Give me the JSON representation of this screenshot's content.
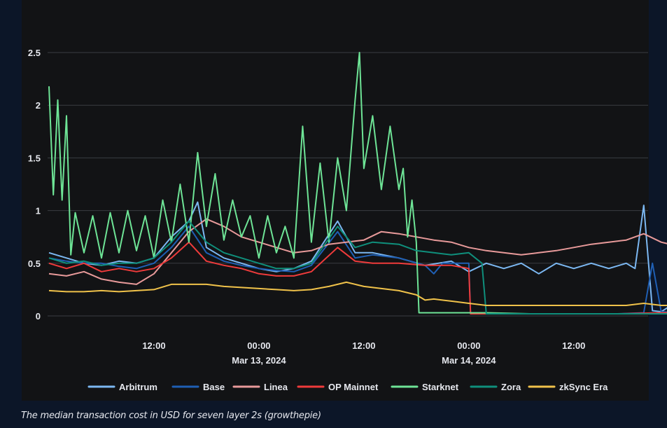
{
  "caption": "The median transaction cost in USD for seven layer 2s (growthepie)",
  "chart_data": {
    "type": "line",
    "title": "",
    "xlabel": "",
    "ylabel": "",
    "x_range": [
      "2024-03-12T00:00",
      "2024-03-14T20:30"
    ],
    "ylim": [
      0,
      2.6
    ],
    "y_ticks": [
      "0",
      "0.5",
      "1",
      "1.5",
      "2",
      "2.5"
    ],
    "x_ticks": [
      {
        "at": "2024-03-12T12:00",
        "lines": [
          "12:00"
        ]
      },
      {
        "at": "2024-03-13T00:00",
        "lines": [
          "00:00",
          "Mar 13, 2024"
        ]
      },
      {
        "at": "2024-03-13T12:00",
        "lines": [
          "12:00"
        ]
      },
      {
        "at": "2024-03-14T00:00",
        "lines": [
          "00:00",
          "Mar 14, 2024"
        ]
      },
      {
        "at": "2024-03-14T12:00",
        "lines": [
          "12:00"
        ]
      }
    ],
    "grid": "horizontal",
    "legend_position": "bottom",
    "series": [
      {
        "name": "Arbitrum",
        "color": "#7cb8f2",
        "points": [
          [
            0,
            0.6
          ],
          [
            2,
            0.55
          ],
          [
            4,
            0.5
          ],
          [
            6,
            0.48
          ],
          [
            8,
            0.52
          ],
          [
            10,
            0.5
          ],
          [
            12,
            0.55
          ],
          [
            14,
            0.75
          ],
          [
            16,
            0.9
          ],
          [
            17,
            1.08
          ],
          [
            18,
            0.65
          ],
          [
            20,
            0.55
          ],
          [
            22,
            0.5
          ],
          [
            24,
            0.45
          ],
          [
            26,
            0.42
          ],
          [
            28,
            0.45
          ],
          [
            30,
            0.52
          ],
          [
            33,
            0.9
          ],
          [
            35,
            0.6
          ],
          [
            37,
            0.6
          ],
          [
            40,
            0.55
          ],
          [
            43,
            0.48
          ],
          [
            46,
            0.52
          ],
          [
            48,
            0.42
          ],
          [
            50,
            0.5
          ],
          [
            52,
            0.45
          ],
          [
            54,
            0.5
          ],
          [
            56,
            0.4
          ],
          [
            58,
            0.5
          ],
          [
            60,
            0.45
          ],
          [
            62,
            0.5
          ],
          [
            64,
            0.45
          ],
          [
            66,
            0.5
          ],
          [
            67,
            0.45
          ],
          [
            68,
            1.05
          ],
          [
            69,
            0.05
          ],
          [
            70,
            0.04
          ],
          [
            71.5,
            0.12
          ],
          [
            72,
            0.04
          ]
        ]
      },
      {
        "name": "Base",
        "color": "#1f5fb4",
        "points": [
          [
            0,
            0.55
          ],
          [
            2,
            0.52
          ],
          [
            4,
            0.5
          ],
          [
            6,
            0.5
          ],
          [
            8,
            0.47
          ],
          [
            10,
            0.45
          ],
          [
            12,
            0.5
          ],
          [
            14,
            0.65
          ],
          [
            16,
            0.85
          ],
          [
            18,
            0.6
          ],
          [
            20,
            0.52
          ],
          [
            22,
            0.48
          ],
          [
            24,
            0.45
          ],
          [
            26,
            0.43
          ],
          [
            28,
            0.42
          ],
          [
            30,
            0.48
          ],
          [
            33,
            0.8
          ],
          [
            35,
            0.55
          ],
          [
            37,
            0.58
          ],
          [
            40,
            0.55
          ],
          [
            43,
            0.48
          ],
          [
            44,
            0.4
          ],
          [
            45,
            0.5
          ],
          [
            48,
            0.5
          ],
          [
            48.2,
            0.02
          ],
          [
            54,
            0.02
          ],
          [
            60,
            0.02
          ],
          [
            65,
            0.02
          ],
          [
            68,
            0.03
          ],
          [
            69,
            0.5
          ],
          [
            70,
            0.04
          ],
          [
            72,
            0.03
          ]
        ]
      },
      {
        "name": "Linea",
        "color": "#e89a9a",
        "points": [
          [
            0,
            0.4
          ],
          [
            2,
            0.38
          ],
          [
            4,
            0.42
          ],
          [
            6,
            0.35
          ],
          [
            8,
            0.32
          ],
          [
            10,
            0.3
          ],
          [
            12,
            0.4
          ],
          [
            14,
            0.6
          ],
          [
            16,
            0.8
          ],
          [
            18,
            0.92
          ],
          [
            20,
            0.85
          ],
          [
            22,
            0.75
          ],
          [
            24,
            0.7
          ],
          [
            26,
            0.65
          ],
          [
            28,
            0.6
          ],
          [
            30,
            0.62
          ],
          [
            32,
            0.68
          ],
          [
            34,
            0.7
          ],
          [
            36,
            0.72
          ],
          [
            38,
            0.8
          ],
          [
            40,
            0.78
          ],
          [
            42,
            0.75
          ],
          [
            44,
            0.72
          ],
          [
            46,
            0.7
          ],
          [
            48,
            0.65
          ],
          [
            50,
            0.62
          ],
          [
            52,
            0.6
          ],
          [
            54,
            0.58
          ],
          [
            56,
            0.6
          ],
          [
            58,
            0.62
          ],
          [
            60,
            0.65
          ],
          [
            62,
            0.68
          ],
          [
            64,
            0.7
          ],
          [
            66,
            0.72
          ],
          [
            68,
            0.78
          ],
          [
            70,
            0.7
          ],
          [
            71,
            0.68
          ],
          [
            72,
            0.78
          ]
        ]
      },
      {
        "name": "OP Mainnet",
        "color": "#ef3b3b",
        "points": [
          [
            0,
            0.5
          ],
          [
            2,
            0.45
          ],
          [
            4,
            0.5
          ],
          [
            6,
            0.42
          ],
          [
            8,
            0.45
          ],
          [
            10,
            0.42
          ],
          [
            12,
            0.45
          ],
          [
            14,
            0.55
          ],
          [
            16,
            0.7
          ],
          [
            18,
            0.52
          ],
          [
            20,
            0.48
          ],
          [
            22,
            0.45
          ],
          [
            24,
            0.4
          ],
          [
            26,
            0.38
          ],
          [
            28,
            0.38
          ],
          [
            30,
            0.42
          ],
          [
            33,
            0.65
          ],
          [
            35,
            0.52
          ],
          [
            37,
            0.5
          ],
          [
            40,
            0.5
          ],
          [
            43,
            0.48
          ],
          [
            46,
            0.48
          ],
          [
            48,
            0.45
          ],
          [
            48.2,
            0.02
          ],
          [
            54,
            0.02
          ],
          [
            60,
            0.02
          ],
          [
            65,
            0.02
          ],
          [
            70,
            0.03
          ],
          [
            72,
            0.03
          ]
        ]
      },
      {
        "name": "Starknet",
        "color": "#6ee496",
        "points": [
          [
            0,
            2.18
          ],
          [
            0.5,
            1.15
          ],
          [
            1,
            2.05
          ],
          [
            1.5,
            1.1
          ],
          [
            2,
            1.9
          ],
          [
            2.5,
            0.58
          ],
          [
            3,
            0.98
          ],
          [
            4,
            0.6
          ],
          [
            5,
            0.95
          ],
          [
            6,
            0.55
          ],
          [
            7,
            0.98
          ],
          [
            8,
            0.6
          ],
          [
            9,
            1.0
          ],
          [
            10,
            0.62
          ],
          [
            11,
            0.95
          ],
          [
            12,
            0.55
          ],
          [
            13,
            1.1
          ],
          [
            14,
            0.7
          ],
          [
            15,
            1.25
          ],
          [
            16,
            0.7
          ],
          [
            17,
            1.55
          ],
          [
            18,
            0.85
          ],
          [
            19,
            1.35
          ],
          [
            20,
            0.72
          ],
          [
            21,
            1.1
          ],
          [
            22,
            0.75
          ],
          [
            23,
            0.95
          ],
          [
            24,
            0.55
          ],
          [
            25,
            0.95
          ],
          [
            26,
            0.6
          ],
          [
            27,
            0.85
          ],
          [
            28,
            0.55
          ],
          [
            29,
            1.8
          ],
          [
            30,
            0.7
          ],
          [
            31,
            1.45
          ],
          [
            32,
            0.7
          ],
          [
            33,
            1.5
          ],
          [
            34,
            1.0
          ],
          [
            35,
            2.05
          ],
          [
            35.5,
            2.5
          ],
          [
            36,
            1.4
          ],
          [
            37,
            1.9
          ],
          [
            38,
            1.2
          ],
          [
            39,
            1.8
          ],
          [
            40,
            1.2
          ],
          [
            40.5,
            1.4
          ],
          [
            41,
            0.75
          ],
          [
            41.5,
            1.1
          ],
          [
            42,
            0.7
          ],
          [
            42.3,
            0.03
          ],
          [
            46,
            0.03
          ],
          [
            50,
            0.03
          ],
          [
            55,
            0.02
          ],
          [
            60,
            0.02
          ],
          [
            66,
            0.02
          ],
          [
            72,
            0.02
          ]
        ]
      },
      {
        "name": "Zora",
        "color": "#0f8f7c",
        "points": [
          [
            0,
            0.55
          ],
          [
            2,
            0.5
          ],
          [
            4,
            0.52
          ],
          [
            6,
            0.48
          ],
          [
            8,
            0.5
          ],
          [
            10,
            0.5
          ],
          [
            12,
            0.55
          ],
          [
            14,
            0.7
          ],
          [
            16,
            0.9
          ],
          [
            18,
            0.7
          ],
          [
            20,
            0.6
          ],
          [
            22,
            0.55
          ],
          [
            24,
            0.5
          ],
          [
            26,
            0.45
          ],
          [
            28,
            0.45
          ],
          [
            30,
            0.5
          ],
          [
            33,
            0.85
          ],
          [
            35,
            0.65
          ],
          [
            37,
            0.7
          ],
          [
            40,
            0.68
          ],
          [
            42,
            0.62
          ],
          [
            44,
            0.6
          ],
          [
            46,
            0.58
          ],
          [
            48,
            0.6
          ],
          [
            49.5,
            0.5
          ],
          [
            50,
            0.02
          ],
          [
            55,
            0.02
          ],
          [
            60,
            0.02
          ],
          [
            66,
            0.02
          ],
          [
            72,
            0.02
          ]
        ]
      },
      {
        "name": "zkSync Era",
        "color": "#f0c24a",
        "points": [
          [
            0,
            0.24
          ],
          [
            2,
            0.23
          ],
          [
            4,
            0.23
          ],
          [
            6,
            0.24
          ],
          [
            8,
            0.23
          ],
          [
            10,
            0.24
          ],
          [
            12,
            0.25
          ],
          [
            14,
            0.3
          ],
          [
            16,
            0.3
          ],
          [
            18,
            0.3
          ],
          [
            20,
            0.28
          ],
          [
            22,
            0.27
          ],
          [
            24,
            0.26
          ],
          [
            26,
            0.25
          ],
          [
            28,
            0.24
          ],
          [
            30,
            0.25
          ],
          [
            32,
            0.28
          ],
          [
            34,
            0.32
          ],
          [
            36,
            0.28
          ],
          [
            38,
            0.26
          ],
          [
            40,
            0.24
          ],
          [
            42,
            0.2
          ],
          [
            43,
            0.15
          ],
          [
            44,
            0.16
          ],
          [
            46,
            0.14
          ],
          [
            48,
            0.12
          ],
          [
            50,
            0.1
          ],
          [
            52,
            0.1
          ],
          [
            55,
            0.1
          ],
          [
            58,
            0.1
          ],
          [
            62,
            0.1
          ],
          [
            66,
            0.1
          ],
          [
            68,
            0.12
          ],
          [
            70,
            0.1
          ],
          [
            71,
            0.1
          ]
        ]
      }
    ]
  }
}
